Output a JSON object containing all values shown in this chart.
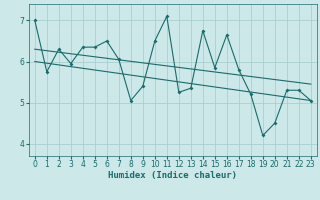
{
  "xlabel": "Humidex (Indice chaleur)",
  "bg_color": "#cce8e8",
  "grid_color": "#aacfcf",
  "line_color": "#1a6b6b",
  "xlim": [
    -0.5,
    23.5
  ],
  "ylim": [
    3.7,
    7.4
  ],
  "yticks": [
    4,
    5,
    6,
    7
  ],
  "xticks": [
    0,
    1,
    2,
    3,
    4,
    5,
    6,
    7,
    8,
    9,
    10,
    11,
    12,
    13,
    14,
    15,
    16,
    17,
    18,
    19,
    20,
    21,
    22,
    23
  ],
  "series1_x": [
    0,
    1,
    2,
    3,
    4,
    5,
    6,
    7,
    8,
    9,
    10,
    11,
    12,
    13,
    14,
    15,
    16,
    17,
    18,
    19,
    20,
    21,
    22,
    23
  ],
  "series1_y": [
    7.0,
    5.75,
    6.3,
    5.95,
    6.35,
    6.35,
    6.5,
    6.05,
    5.05,
    5.4,
    6.5,
    7.1,
    5.25,
    5.35,
    6.75,
    5.85,
    6.65,
    5.8,
    5.2,
    4.2,
    4.5,
    5.3,
    5.3,
    5.05
  ],
  "trend1_x": [
    0,
    23
  ],
  "trend1_y": [
    6.3,
    5.45
  ],
  "trend2_x": [
    0,
    23
  ],
  "trend2_y": [
    6.0,
    5.05
  ],
  "xlabel_fontsize": 6.5,
  "xlabel_fontweight": "bold",
  "tick_fontsize": 5.5
}
